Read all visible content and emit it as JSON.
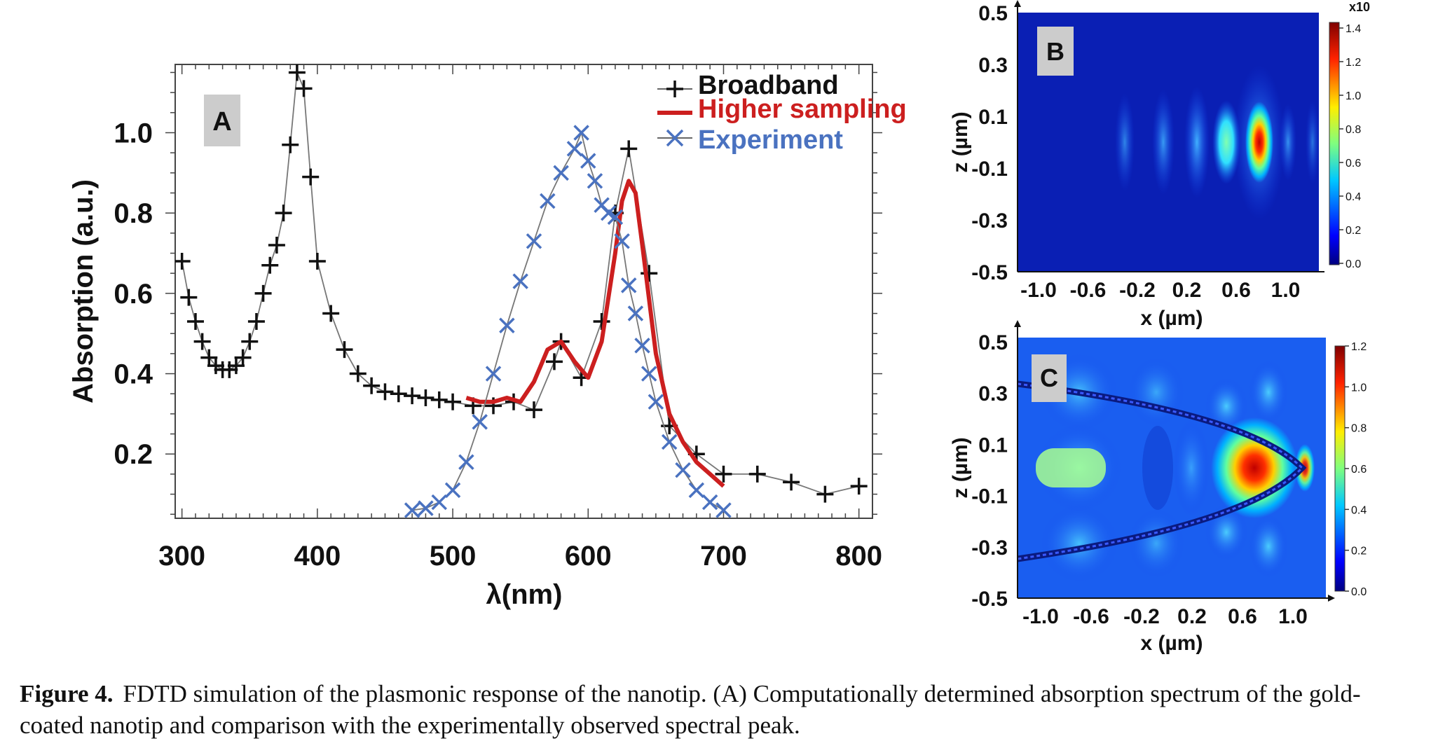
{
  "colors": {
    "broadband": "#111111",
    "higher_sampling": "#cc1f1f",
    "experiment": "#4a72c0",
    "field_background": "#0a1fb4",
    "panel_label_bg": "#cccccc"
  },
  "chart_data": [
    {
      "type": "line",
      "panel_label": "A",
      "xlabel": "λ(nm)",
      "ylabel": "Absorption (a.u.)",
      "xlim": [
        295,
        810
      ],
      "ylim": [
        0.04,
        1.17
      ],
      "x_ticks": [
        "300",
        "400",
        "500",
        "600",
        "700",
        "800"
      ],
      "y_ticks": [
        "0.2",
        "0.4",
        "0.6",
        "0.8",
        "1.0"
      ],
      "legend_position": "top-right",
      "series": [
        {
          "name": "Broadband",
          "marker": "plus",
          "x": [
            300,
            305,
            310,
            315,
            320,
            325,
            330,
            335,
            340,
            345,
            350,
            355,
            360,
            365,
            370,
            375,
            380,
            385,
            390,
            395,
            400,
            410,
            420,
            430,
            440,
            450,
            460,
            470,
            480,
            490,
            500,
            515,
            530,
            545,
            560,
            575,
            580,
            595,
            610,
            620,
            630,
            645,
            660,
            680,
            700,
            725,
            750,
            775,
            800
          ],
          "y": [
            0.68,
            0.59,
            0.53,
            0.48,
            0.44,
            0.42,
            0.41,
            0.41,
            0.42,
            0.44,
            0.48,
            0.53,
            0.6,
            0.67,
            0.72,
            0.8,
            0.97,
            1.15,
            1.11,
            0.89,
            0.68,
            0.55,
            0.46,
            0.4,
            0.37,
            0.355,
            0.35,
            0.345,
            0.34,
            0.335,
            0.33,
            0.32,
            0.32,
            0.33,
            0.31,
            0.43,
            0.48,
            0.39,
            0.53,
            0.8,
            0.96,
            0.65,
            0.27,
            0.2,
            0.15,
            0.15,
            0.13,
            0.1,
            0.12
          ]
        },
        {
          "name": "Higher sampling",
          "marker": "none",
          "x": [
            510,
            520,
            530,
            540,
            550,
            560,
            570,
            580,
            590,
            600,
            610,
            620,
            625,
            630,
            635,
            640,
            650,
            660,
            670,
            680,
            690,
            700
          ],
          "y": [
            0.34,
            0.33,
            0.33,
            0.34,
            0.33,
            0.38,
            0.46,
            0.48,
            0.43,
            0.39,
            0.48,
            0.7,
            0.83,
            0.88,
            0.85,
            0.72,
            0.45,
            0.3,
            0.23,
            0.18,
            0.15,
            0.12
          ]
        },
        {
          "name": "Experiment",
          "marker": "x",
          "x": [
            470,
            480,
            490,
            500,
            510,
            520,
            530,
            540,
            550,
            560,
            570,
            580,
            590,
            595,
            600,
            605,
            610,
            615,
            620,
            625,
            630,
            635,
            640,
            645,
            650,
            660,
            670,
            680,
            690,
            700
          ],
          "y": [
            0.06,
            0.065,
            0.08,
            0.11,
            0.18,
            0.28,
            0.4,
            0.52,
            0.63,
            0.73,
            0.83,
            0.9,
            0.96,
            1.0,
            0.93,
            0.88,
            0.82,
            0.8,
            0.79,
            0.73,
            0.62,
            0.55,
            0.47,
            0.4,
            0.33,
            0.23,
            0.16,
            0.11,
            0.08,
            0.06
          ]
        }
      ]
    },
    {
      "type": "heatmap",
      "panel_label": "B",
      "xlabel": "x (µm)",
      "ylabel": "z (µm)",
      "x_ticks": [
        "-1.0",
        "-0.6",
        "-0.2",
        "0.2",
        "0.6",
        "1.0"
      ],
      "y_ticks": [
        "0.5",
        "0.3",
        "0.1",
        "-0.1",
        "-0.3",
        "-0.5"
      ],
      "colorbar_ticks": [
        "1.4",
        "1.2",
        "1.0",
        "0.8",
        "0.6",
        "0.4",
        "0.2",
        "0.0"
      ],
      "colorbar_multiplier": "x10"
    },
    {
      "type": "heatmap",
      "panel_label": "C",
      "xlabel": "x (µm)",
      "ylabel": "z (µm)",
      "x_ticks": [
        "-1.0",
        "-0.6",
        "-0.2",
        "0.2",
        "0.6",
        "1.0"
      ],
      "y_ticks": [
        "0.5",
        "0.3",
        "0.1",
        "-0.1",
        "-0.3",
        "-0.5"
      ],
      "colorbar_ticks": [
        "1.2",
        "1.0",
        "0.8",
        "0.6",
        "0.4",
        "0.2",
        "0.0"
      ]
    }
  ],
  "caption": {
    "label": "Figure 4.",
    "text": "FDTD simulation of the plasmonic response of the nanotip. (A) Computationally determined absorption spectrum of the gold-coated nanotip and comparison with the experimentally observed spectral peak."
  }
}
